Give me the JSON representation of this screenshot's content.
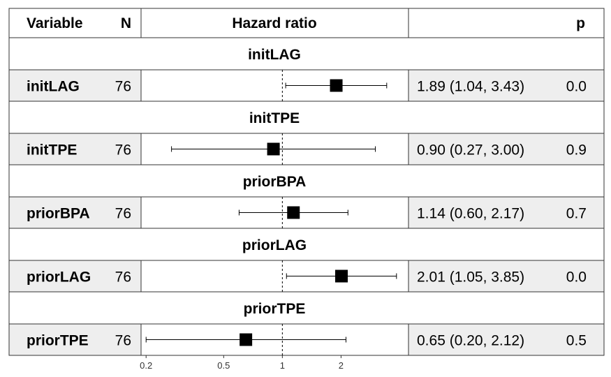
{
  "headers": {
    "variable": "Variable",
    "n": "N",
    "hazard": "Hazard ratio",
    "p": "p"
  },
  "chart_data": {
    "type": "forest",
    "axis": {
      "scale": "log",
      "ticks": [
        0.2,
        0.5,
        1,
        2
      ],
      "tick_labels": [
        "0.2",
        "0.5",
        "1",
        "2"
      ],
      "xlim": [
        0.19,
        4.4
      ],
      "reference_line": 1
    },
    "rows": [
      {
        "section": "initLAG",
        "variable": "initLAG",
        "n": "76",
        "hr": 1.89,
        "lo": 1.04,
        "hi": 3.43,
        "ci_text": "1.89 (1.04, 3.43)",
        "p": "0.0"
      },
      {
        "section": "initTPE",
        "variable": "initTPE",
        "n": "76",
        "hr": 0.9,
        "lo": 0.27,
        "hi": 3.0,
        "ci_text": "0.90 (0.27, 3.00)",
        "p": "0.9"
      },
      {
        "section": "priorBPA",
        "variable": "priorBPA",
        "n": "76",
        "hr": 1.14,
        "lo": 0.6,
        "hi": 2.17,
        "ci_text": "1.14 (0.60, 2.17)",
        "p": "0.7"
      },
      {
        "section": "priorLAG",
        "variable": "priorLAG",
        "n": "76",
        "hr": 2.01,
        "lo": 1.05,
        "hi": 3.85,
        "ci_text": "2.01 (1.05, 3.85)",
        "p": "0.0"
      },
      {
        "section": "priorTPE",
        "variable": "priorTPE",
        "n": "76",
        "hr": 0.65,
        "lo": 0.2,
        "hi": 2.12,
        "ci_text": "0.65 (0.20, 2.12)",
        "p": "0.5"
      }
    ]
  }
}
